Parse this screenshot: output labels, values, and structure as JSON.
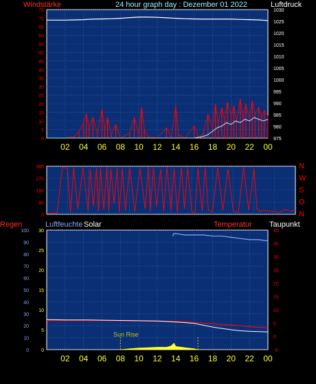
{
  "header": {
    "left_label": "Windstärke",
    "title": "24 hour graph day : Dezember 01 2022",
    "right_label": "Luftdruck"
  },
  "colors": {
    "plot_bg": "#0b2f74",
    "grid": "#4a6fb0",
    "red": "#ff0000",
    "white": "#ffffff",
    "cyan": "#a6f0ff",
    "yellow": "#ffff33",
    "sun": "#c8c800",
    "blue_line": "#8aa8ff",
    "title_color": "#9ef0ff"
  },
  "hour_labels": [
    "02",
    "04",
    "06",
    "08",
    "10",
    "12",
    "14",
    "16",
    "18",
    "20",
    "22",
    "00"
  ],
  "chart_data": [
    {
      "id": "wind-pressure",
      "type": "line",
      "x_unit": "hours",
      "xlim": [
        0,
        24
      ],
      "y_left": {
        "label": "Windstärke",
        "ticks": [
          "0",
          "5",
          "10",
          "15",
          "20",
          "25",
          "30",
          "35",
          "40",
          "45",
          "50",
          "55",
          "60",
          "65",
          "70",
          "75"
        ],
        "lim": [
          0,
          75
        ]
      },
      "y_right": {
        "label": "Luftdruck",
        "ticks": [
          "975",
          "980",
          "985",
          "990",
          "995",
          "1000",
          "1005",
          "1010",
          "1015",
          "1020",
          "1025",
          "1030"
        ],
        "lim": [
          975,
          1030
        ]
      },
      "series": [
        {
          "key": "pressure",
          "axis": "right",
          "color": "white",
          "x": [
            0,
            1,
            2,
            3,
            4,
            5,
            6,
            7,
            8,
            9,
            10,
            11,
            12,
            13,
            14,
            15,
            16,
            17,
            18,
            19,
            20,
            21,
            22,
            23,
            24
          ],
          "values": [
            1025.5,
            1025.5,
            1025.5,
            1025.6,
            1025.7,
            1025.9,
            1026.0,
            1026.1,
            1026.3,
            1026.6,
            1026.8,
            1026.8,
            1026.7,
            1026.5,
            1026.3,
            1026.1,
            1026.0,
            1025.9,
            1025.9,
            1025.9,
            1025.9,
            1025.8,
            1025.7,
            1025.6,
            1025.3
          ]
        },
        {
          "key": "wind_gust",
          "axis": "left",
          "color": "red",
          "x": [
            0,
            1,
            2,
            3,
            3.5,
            4,
            4.3,
            4.6,
            5,
            5.5,
            6,
            6.3,
            6.6,
            7,
            7.5,
            8,
            9,
            9.5,
            10,
            10.3,
            10.6,
            11,
            12,
            13,
            13.5,
            14,
            14.3,
            15,
            16,
            16.5,
            17,
            17.5,
            18,
            18.3,
            18.6,
            19,
            19.3,
            19.6,
            20,
            20.3,
            20.6,
            21,
            21.3,
            21.6,
            22,
            22.3,
            22.6,
            23,
            23.3,
            23.6,
            24
          ],
          "values": [
            0,
            0,
            0,
            1,
            4,
            9,
            14,
            6,
            12,
            3,
            17,
            5,
            12,
            2,
            8,
            0,
            3,
            12,
            2,
            18,
            5,
            1,
            0,
            6,
            0,
            19,
            2,
            0,
            7,
            0,
            3,
            14,
            6,
            20,
            9,
            18,
            11,
            21,
            13,
            19,
            10,
            23,
            12,
            20,
            11,
            22,
            14,
            18,
            12,
            16,
            13
          ]
        },
        {
          "key": "wind_mean",
          "axis": "left",
          "color": "cyan",
          "x": [
            0,
            4,
            8,
            12,
            16,
            17,
            17.5,
            18,
            18.5,
            19,
            19.5,
            20,
            20.5,
            21,
            21.5,
            22,
            22.5,
            23,
            23.5,
            24
          ],
          "values": [
            0,
            0,
            0,
            0,
            0,
            1,
            2,
            4,
            6,
            7,
            9,
            8,
            10,
            9,
            11,
            10,
            12,
            11,
            10,
            11
          ]
        }
      ]
    },
    {
      "id": "wind-direction",
      "type": "line",
      "x_unit": "hours",
      "xlim": [
        0,
        24
      ],
      "y_left": {
        "ticks": [
          "0",
          "90",
          "180",
          "270",
          "360"
        ],
        "lim": [
          0,
          360
        ]
      },
      "y_right": {
        "ticks": [
          "N",
          "O",
          "S",
          "W",
          "N"
        ]
      },
      "series": [
        {
          "key": "direction",
          "axis": "left",
          "color": "red",
          "x": [
            0,
            1,
            1.5,
            2,
            2.3,
            2.6,
            3,
            3.5,
            4,
            4.2,
            4.5,
            4.8,
            5,
            5.2,
            5.5,
            5.8,
            6,
            6.2,
            6.5,
            6.8,
            7,
            7.3,
            7.6,
            8,
            8.5,
            9,
            9.5,
            9.8,
            10,
            10.3,
            10.6,
            11,
            11.3,
            11.6,
            12,
            12.3,
            12.6,
            13,
            13.3,
            13.6,
            14,
            14.3,
            14.6,
            15,
            15.3,
            15.6,
            16,
            16.5,
            17,
            17.5,
            18,
            18.5,
            19,
            19.5,
            20,
            20.3,
            20.6,
            21,
            21.5,
            22,
            22.5,
            23,
            23.5,
            24
          ],
          "values": [
            5,
            10,
            350,
            345,
            15,
            350,
            40,
            350,
            30,
            340,
            60,
            350,
            20,
            345,
            35,
            355,
            25,
            340,
            80,
            350,
            15,
            345,
            30,
            350,
            20,
            345,
            40,
            355,
            25,
            350,
            60,
            340,
            20,
            355,
            30,
            345,
            15,
            350,
            40,
            350,
            20,
            10,
            345,
            25,
            350,
            30,
            20,
            350,
            30,
            340,
            25,
            15,
            355,
            30,
            345,
            40,
            20,
            30,
            25,
            20,
            15,
            35,
            25,
            30
          ]
        }
      ]
    },
    {
      "id": "humidity-temp-solar",
      "type": "line",
      "x_unit": "hours",
      "xlim": [
        0,
        24
      ],
      "y_left": {
        "label": "Regen",
        "ticks": [
          "0",
          "10",
          "20",
          "30",
          "40",
          "50",
          "60",
          "70",
          "80",
          "90",
          "100"
        ],
        "lim": [
          0,
          100
        ]
      },
      "y_inner": {
        "label": "Luftfeuchte",
        "ticks": [
          "0",
          "5",
          "10",
          "15",
          "20",
          "25",
          "30"
        ],
        "lim": [
          0,
          30
        ]
      },
      "y_right": {
        "label": "Temperatur",
        "ticks": [
          "-5",
          "0",
          "5",
          "10",
          "15",
          "20",
          "25",
          "30",
          "35",
          "40"
        ],
        "lim": [
          -5,
          40
        ]
      },
      "extra_labels": {
        "solar": "Solar",
        "dewpoint": "Taupunkt",
        "sunrise": "Sun Rise"
      },
      "markers": {
        "sunrise_hour": 8.0,
        "sunset_hour": 16.4
      },
      "series": [
        {
          "key": "humidity",
          "axis": "left",
          "color": "blue_line",
          "x": [
            13.7,
            13.75,
            14,
            15,
            16,
            17,
            18,
            19,
            20,
            21,
            22,
            23,
            24
          ],
          "values": [
            95,
            97,
            97,
            96,
            96,
            96,
            95,
            95,
            94,
            93,
            92,
            92,
            91
          ]
        },
        {
          "key": "temperature",
          "axis": "right",
          "color": "red",
          "x": [
            0,
            2,
            4,
            6,
            8,
            10,
            12,
            14,
            15,
            16,
            17,
            18,
            19,
            20,
            21,
            22,
            23,
            24
          ],
          "values": [
            6.0,
            6.0,
            6.0,
            6.0,
            5.9,
            5.8,
            5.7,
            5.6,
            5.5,
            5.3,
            5.0,
            4.8,
            4.5,
            4.3,
            4.0,
            3.6,
            3.4,
            3.2
          ]
        },
        {
          "key": "dewpoint",
          "axis": "right",
          "color": "white",
          "x": [
            0,
            2,
            4,
            6,
            8,
            10,
            12,
            14,
            15,
            16,
            17,
            18,
            19,
            20,
            21,
            22,
            23,
            24
          ],
          "values": [
            6.3,
            6.2,
            6.2,
            6.1,
            6.0,
            5.9,
            5.8,
            5.4,
            5.2,
            4.9,
            4.2,
            3.5,
            3.0,
            2.5,
            2.1,
            1.9,
            1.8,
            1.7
          ]
        },
        {
          "key": "solar",
          "axis": "inner",
          "color": "yellow",
          "x": [
            8,
            9,
            10,
            11,
            12,
            13,
            13.5,
            13.8,
            14,
            14.3,
            15,
            16,
            16.4
          ],
          "values": [
            0,
            0.2,
            0.4,
            0.5,
            0.6,
            0.6,
            0.9,
            1.6,
            0.8,
            0.7,
            0.5,
            0.2,
            0
          ]
        }
      ]
    }
  ]
}
